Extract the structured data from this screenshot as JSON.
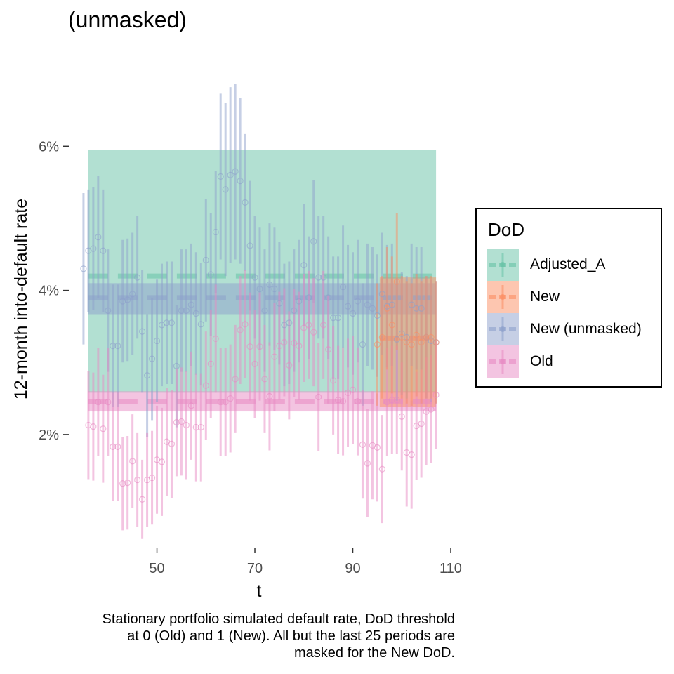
{
  "title": "(unmasked)",
  "caption_lines": [
    "Stationary portfolio simulated default rate, DoD threshold",
    "at 0 (Old) and 1 (New). All but the last 25 periods are",
    "masked for the New DoD."
  ],
  "legend": {
    "title": "DoD",
    "items": [
      {
        "label": "Adjusted_A",
        "color": "#66c2a5"
      },
      {
        "label": "New",
        "color": "#fc8d62"
      },
      {
        "label": "New (unmasked)",
        "color": "#8da0cb"
      },
      {
        "label": "Old",
        "color": "#e78ac3"
      }
    ]
  },
  "chart_data": {
    "type": "scatter",
    "xlabel": "t",
    "ylabel": "12-month into-default rate",
    "x_ticks": [
      50,
      70,
      90,
      110
    ],
    "x_tick_labels": [
      "50",
      "70",
      "90",
      "110"
    ],
    "y_ticks": [
      0.02,
      0.04,
      0.06
    ],
    "y_tick_labels": [
      "2%",
      "4%",
      "6%"
    ],
    "xlim": [
      32,
      110
    ],
    "ylim": [
      0.0045,
      0.0725
    ],
    "grid": false,
    "legend_position": "right",
    "bands": [
      {
        "series": "Adjusted_A",
        "x": [
          36,
          107
        ],
        "y": [
          0.0258,
          0.0595
        ],
        "color": "#66c2a5"
      },
      {
        "series": "New (unmasked)",
        "x": [
          36,
          107
        ],
        "y": [
          0.0367,
          0.041
        ],
        "color": "#8da0cb"
      },
      {
        "series": "Old",
        "x": [
          36,
          107
        ],
        "y": [
          0.0232,
          0.026
        ],
        "color": "#e78ac3"
      },
      {
        "series": "New",
        "x": [
          95.5,
          107
        ],
        "y": [
          0.0238,
          0.0418
        ],
        "color": "#fc8d62"
      }
    ],
    "dashed_means": [
      {
        "series": "Adjusted_A",
        "y": 0.042,
        "color": "#66c2a5"
      },
      {
        "series": "New (unmasked)",
        "y": 0.039,
        "color": "#8da0cb"
      },
      {
        "series": "Old",
        "y": 0.0246,
        "color": "#e78ac3"
      },
      {
        "series": "New",
        "x": [
          95.5,
          107
        ],
        "y": 0.0334,
        "color": "#fc8d62"
      }
    ],
    "series": [
      {
        "name": "New (unmasked)",
        "color": "#8da0cb",
        "x": [
          35,
          36,
          37,
          38,
          39,
          40,
          41,
          42,
          43,
          44,
          45,
          46,
          47,
          48,
          49,
          50,
          51,
          52,
          53,
          54,
          55,
          56,
          57,
          58,
          59,
          60,
          61,
          62,
          63,
          64,
          65,
          66,
          67,
          68,
          69,
          70,
          71,
          72,
          73,
          74,
          75,
          76,
          77,
          78,
          79,
          80,
          81,
          82,
          83,
          84,
          85,
          86,
          87,
          88,
          89,
          90,
          91,
          92,
          93,
          94,
          95,
          96,
          97,
          98,
          99,
          100,
          101,
          102,
          103,
          104,
          105,
          106,
          107
        ],
        "y": [
          0.043,
          0.0455,
          0.0458,
          0.0474,
          0.0455,
          0.0372,
          0.0323,
          0.0323,
          0.0385,
          0.0387,
          0.0395,
          0.0418,
          0.0343,
          0.0282,
          0.0305,
          0.033,
          0.0352,
          0.0355,
          0.0355,
          0.0295,
          0.0372,
          0.0372,
          0.038,
          0.0368,
          0.0353,
          0.0442,
          0.0422,
          0.0481,
          0.0558,
          0.054,
          0.056,
          0.0565,
          0.0552,
          0.0522,
          0.0462,
          0.0418,
          0.0402,
          0.0372,
          0.0408,
          0.0402,
          0.0382,
          0.0352,
          0.0355,
          0.0372,
          0.0385,
          0.0435,
          0.039,
          0.0468,
          0.0418,
          0.0418,
          0.039,
          0.0362,
          0.0362,
          0.0405,
          0.0378,
          0.0368,
          0.0385,
          0.0325,
          0.038,
          0.0375,
          0.0365,
          0.0395,
          0.0378,
          0.038,
          0.0332,
          0.034,
          0.0335,
          0.038,
          0.0375,
          0.0375,
          0.0335,
          0.033,
          0.0328
        ],
        "err_half": [
          0.0105,
          0.0085,
          0.0085,
          0.0085,
          0.0085,
          0.0085,
          0.0085,
          0.0085,
          0.0085,
          0.0085,
          0.0085,
          0.0085,
          0.0085,
          0.0085,
          0.0085,
          0.0085,
          0.0085,
          0.0085,
          0.0085,
          0.0085,
          0.0085,
          0.0085,
          0.0085,
          0.0085,
          0.0085,
          0.0085,
          0.0085,
          0.0085,
          0.0115,
          0.012,
          0.0122,
          0.0122,
          0.0115,
          0.0095,
          0.009,
          0.0085,
          0.0085,
          0.0085,
          0.0085,
          0.0085,
          0.0085,
          0.0085,
          0.0085,
          0.0085,
          0.0085,
          0.0085,
          0.0085,
          0.0085,
          0.0085,
          0.0085,
          0.0085,
          0.0085,
          0.0085,
          0.0085,
          0.0085,
          0.0085,
          0.0085,
          0.0085,
          0.0085,
          0.0085,
          0.0085,
          0.0085,
          0.0085,
          0.0085,
          0.0085,
          0.0085,
          0.0085,
          0.0085,
          0.0085,
          0.0085,
          0.0085,
          0.0085,
          0.0085
        ]
      },
      {
        "name": "Old",
        "color": "#e78ac3",
        "x": [
          36,
          37,
          38,
          39,
          40,
          41,
          42,
          43,
          44,
          45,
          46,
          47,
          48,
          49,
          50,
          51,
          52,
          53,
          54,
          55,
          56,
          57,
          58,
          59,
          60,
          61,
          62,
          63,
          64,
          65,
          66,
          67,
          68,
          69,
          70,
          71,
          72,
          73,
          74,
          75,
          76,
          77,
          78,
          79,
          80,
          81,
          82,
          83,
          84,
          85,
          86,
          87,
          88,
          89,
          90,
          91,
          92,
          93,
          94,
          95,
          96,
          97,
          98,
          99,
          100,
          101,
          102,
          103,
          104,
          105,
          106,
          107
        ],
        "y": [
          0.0213,
          0.0211,
          0.0245,
          0.0208,
          0.0245,
          0.0183,
          0.0183,
          0.0132,
          0.0133,
          0.0163,
          0.0137,
          0.011,
          0.0137,
          0.014,
          0.0165,
          0.0162,
          0.019,
          0.0187,
          0.0217,
          0.0218,
          0.0213,
          0.024,
          0.021,
          0.021,
          0.0268,
          0.0298,
          0.0333,
          0.0245,
          0.0245,
          0.025,
          0.0277,
          0.0345,
          0.0353,
          0.0322,
          0.0298,
          0.0322,
          0.0277,
          0.0253,
          0.0308,
          0.0323,
          0.0328,
          0.0296,
          0.0327,
          0.0323,
          0.0348,
          0.0352,
          0.0342,
          0.0252,
          0.0352,
          0.0318,
          0.0275,
          0.0248,
          0.0246,
          0.0258,
          0.0262,
          0.0246,
          0.0186,
          0.016,
          0.0185,
          0.0182,
          0.0152,
          0.0245,
          0.0248,
          0.0248,
          0.0225,
          0.0175,
          0.0172,
          0.0212,
          0.0215,
          0.0232,
          0.0235,
          0.0255
        ],
        "err_half": [
          0.0075,
          0.0075,
          0.0075,
          0.0075,
          0.0075,
          0.0075,
          0.0075,
          0.0065,
          0.0065,
          0.0065,
          0.0065,
          0.0055,
          0.0065,
          0.0065,
          0.0075,
          0.0075,
          0.0075,
          0.0075,
          0.0075,
          0.0075,
          0.0075,
          0.0075,
          0.0075,
          0.0075,
          0.0075,
          0.0075,
          0.0075,
          0.0075,
          0.0075,
          0.0075,
          0.0075,
          0.0075,
          0.0075,
          0.0075,
          0.0075,
          0.0075,
          0.0075,
          0.0075,
          0.0075,
          0.0075,
          0.0075,
          0.0075,
          0.0075,
          0.0075,
          0.0075,
          0.0075,
          0.0075,
          0.0075,
          0.0075,
          0.0075,
          0.0075,
          0.0075,
          0.0075,
          0.0075,
          0.0075,
          0.0075,
          0.0075,
          0.0075,
          0.0075,
          0.0075,
          0.0075,
          0.0075,
          0.0075,
          0.0075,
          0.0075,
          0.0075,
          0.0075,
          0.0075,
          0.0075,
          0.0075,
          0.0075,
          0.0075
        ]
      },
      {
        "name": "New",
        "color": "#fc8d62",
        "x": [
          95,
          96,
          97,
          98,
          99,
          100,
          101,
          102,
          103,
          104,
          105,
          106,
          107
        ],
        "y": [
          0.0325,
          0.0335,
          0.0375,
          0.0352,
          0.0412,
          0.0335,
          0.0328,
          0.0325,
          0.0338,
          0.0328,
          0.0335,
          0.0335,
          0.0328
        ],
        "err_half": [
          0.0085,
          0.0085,
          0.0085,
          0.0095,
          0.0095,
          0.0085,
          0.0085,
          0.0085,
          0.0085,
          0.0085,
          0.0085,
          0.0085,
          0.0085
        ]
      }
    ]
  }
}
